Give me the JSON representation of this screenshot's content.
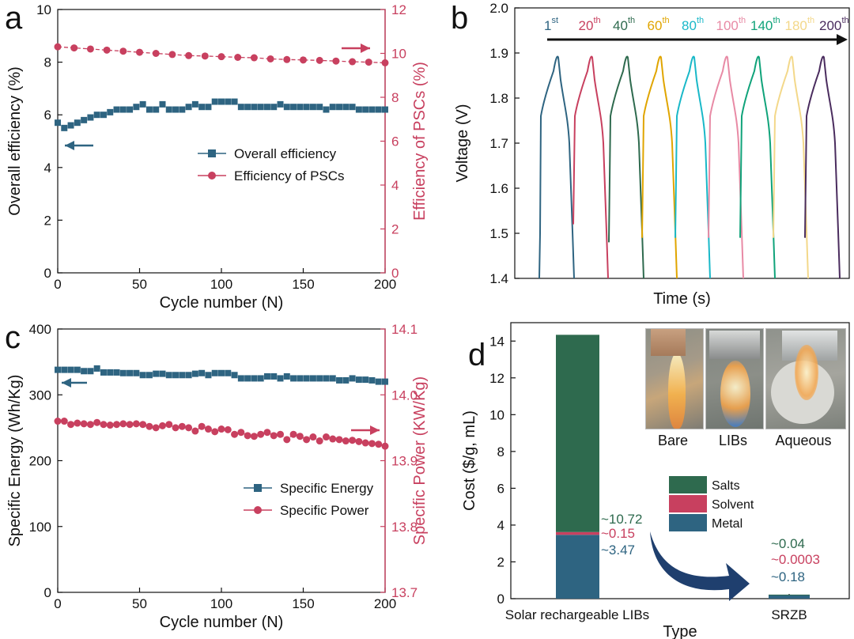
{
  "colors": {
    "blue": "#2e6481",
    "red": "#c8405f",
    "green": "#2e6a4e",
    "darkblue": "#1f3f6e",
    "photo_bg": "#9a9a90"
  },
  "chart_data": [
    {
      "panel": "a",
      "type": "line",
      "xlabel": "Cycle number (N)",
      "xlim": [
        0,
        200
      ],
      "xticks": [
        0,
        50,
        100,
        150,
        200
      ],
      "ylabel": "Overall efficiency (%)",
      "ylim": [
        0,
        10
      ],
      "yticks": [
        0,
        2,
        4,
        6,
        8,
        10
      ],
      "y2label": "Efficiency of PSCs (%)",
      "y2lim": [
        0,
        12
      ],
      "y2ticks": [
        0,
        2,
        4,
        6,
        8,
        10,
        12
      ],
      "legend": "center-right",
      "series": [
        {
          "name": "Overall efficiency",
          "axis": "left",
          "marker": "square",
          "color": "#2e6481",
          "x": [
            0,
            4,
            8,
            12,
            16,
            20,
            24,
            28,
            32,
            36,
            40,
            44,
            48,
            52,
            56,
            60,
            64,
            68,
            72,
            76,
            80,
            84,
            88,
            92,
            96,
            100,
            104,
            108,
            112,
            116,
            120,
            124,
            128,
            132,
            136,
            140,
            144,
            148,
            152,
            156,
            160,
            164,
            168,
            172,
            176,
            180,
            184,
            188,
            192,
            196,
            200
          ],
          "values": [
            5.7,
            5.5,
            5.6,
            5.7,
            5.8,
            5.9,
            6.0,
            6.0,
            6.1,
            6.2,
            6.2,
            6.2,
            6.3,
            6.4,
            6.2,
            6.2,
            6.4,
            6.2,
            6.2,
            6.2,
            6.3,
            6.4,
            6.3,
            6.3,
            6.5,
            6.5,
            6.5,
            6.5,
            6.3,
            6.3,
            6.3,
            6.3,
            6.3,
            6.3,
            6.4,
            6.3,
            6.3,
            6.3,
            6.3,
            6.3,
            6.3,
            6.2,
            6.3,
            6.3,
            6.3,
            6.3,
            6.2,
            6.2,
            6.2,
            6.2,
            6.2
          ]
        },
        {
          "name": "Efficiency of PSCs",
          "axis": "right",
          "marker": "circle",
          "color": "#c8405f",
          "x": [
            0,
            10,
            20,
            30,
            40,
            50,
            60,
            70,
            80,
            90,
            100,
            110,
            120,
            130,
            140,
            150,
            160,
            170,
            180,
            190,
            200
          ],
          "values": [
            10.3,
            10.25,
            10.2,
            10.15,
            10.1,
            10.05,
            10.0,
            9.95,
            9.9,
            9.88,
            9.85,
            9.82,
            9.8,
            9.75,
            9.72,
            9.7,
            9.68,
            9.65,
            9.62,
            9.6,
            9.57
          ]
        }
      ],
      "annotations": [
        "arrow-left (overall efficiency → left axis)",
        "arrow-right (PSCs → right axis)"
      ]
    },
    {
      "panel": "b",
      "type": "line",
      "xlabel": "Time (s)",
      "ylabel": "Voltage (V)",
      "ylim": [
        1.4,
        2.0
      ],
      "yticks": [
        1.4,
        1.5,
        1.6,
        1.7,
        1.8,
        1.9,
        2.0
      ],
      "cycle_labels": [
        {
          "num": "1",
          "sup": "st",
          "color": "#2e6481"
        },
        {
          "num": "20",
          "sup": "th",
          "color": "#c8405f"
        },
        {
          "num": "40",
          "sup": "th",
          "color": "#2e6a4e"
        },
        {
          "num": "60",
          "sup": "th",
          "color": "#e0a500"
        },
        {
          "num": "80",
          "sup": "th",
          "color": "#19b8c8"
        },
        {
          "num": "100",
          "sup": "th",
          "color": "#e88aa5"
        },
        {
          "num": "140",
          "sup": "th",
          "color": "#10a37a"
        },
        {
          "num": "180",
          "sup": "th",
          "color": "#f3d88a"
        },
        {
          "num": "200",
          "sup": "th",
          "color": "#4a2c5e"
        }
      ],
      "curve_peak_voltage": 1.89,
      "curve_min_voltage": 1.4
    },
    {
      "panel": "c",
      "type": "line",
      "xlabel": "Cycle number (N)",
      "xlim": [
        0,
        200
      ],
      "xticks": [
        0,
        50,
        100,
        150,
        200
      ],
      "ylabel": "Specific Energy (Wh/Kg)",
      "ylim": [
        0,
        400
      ],
      "yticks": [
        0,
        100,
        200,
        300,
        400
      ],
      "y2label": "Specific Power (KW/Kg)",
      "y2lim": [
        13.7,
        14.1
      ],
      "y2ticks": [
        "13.7",
        "13.8",
        "13.9",
        "14.0",
        "14.1"
      ],
      "legend": "center-right",
      "series": [
        {
          "name": "Specific Energy",
          "axis": "left",
          "marker": "square",
          "color": "#2e6481",
          "x": [
            0,
            4,
            8,
            12,
            16,
            20,
            24,
            28,
            32,
            36,
            40,
            44,
            48,
            52,
            56,
            60,
            64,
            68,
            72,
            76,
            80,
            84,
            88,
            92,
            96,
            100,
            104,
            108,
            112,
            116,
            120,
            124,
            128,
            132,
            136,
            140,
            144,
            148,
            152,
            156,
            160,
            164,
            168,
            172,
            176,
            180,
            184,
            188,
            192,
            196,
            200
          ],
          "values": [
            338,
            338,
            338,
            338,
            336,
            336,
            340,
            334,
            334,
            334,
            333,
            333,
            333,
            330,
            330,
            332,
            332,
            330,
            330,
            330,
            330,
            332,
            333,
            330,
            333,
            333,
            333,
            330,
            325,
            325,
            325,
            325,
            328,
            328,
            325,
            328,
            325,
            325,
            325,
            325,
            325,
            325,
            325,
            322,
            322,
            325,
            323,
            323,
            322,
            320,
            320
          ]
        },
        {
          "name": "Specific Power",
          "axis": "right",
          "marker": "circle",
          "color": "#c8405f",
          "x": [
            0,
            4,
            8,
            12,
            16,
            20,
            24,
            28,
            32,
            36,
            40,
            44,
            48,
            52,
            56,
            60,
            64,
            68,
            72,
            76,
            80,
            84,
            88,
            92,
            96,
            100,
            104,
            108,
            112,
            116,
            120,
            124,
            128,
            132,
            136,
            140,
            144,
            148,
            152,
            156,
            160,
            164,
            168,
            172,
            176,
            180,
            184,
            188,
            192,
            196,
            200
          ],
          "values": [
            13.96,
            13.96,
            13.955,
            13.957,
            13.956,
            13.955,
            13.958,
            13.955,
            13.954,
            13.955,
            13.956,
            13.955,
            13.956,
            13.955,
            13.952,
            13.95,
            13.953,
            13.955,
            13.95,
            13.952,
            13.95,
            13.945,
            13.952,
            13.948,
            13.944,
            13.948,
            13.947,
            13.94,
            13.943,
            13.938,
            13.937,
            13.94,
            13.943,
            13.938,
            13.94,
            13.932,
            13.94,
            13.937,
            13.932,
            13.936,
            13.93,
            13.936,
            13.933,
            13.932,
            13.93,
            13.931,
            13.929,
            13.927,
            13.926,
            13.925,
            13.922
          ]
        }
      ],
      "annotations": [
        "arrow-left (energy → left axis)",
        "arrow-right (power → right axis)"
      ]
    },
    {
      "panel": "d",
      "type": "bar",
      "stacked": true,
      "xlabel": "Type",
      "ylabel": "Cost ($/g, mL)",
      "ylim": [
        0,
        15
      ],
      "yticks": [
        0,
        2,
        4,
        6,
        8,
        10,
        12,
        14
      ],
      "categories": [
        "Solar rechargeable LIBs",
        "SRZB"
      ],
      "series": [
        {
          "name": "Metal",
          "color": "#2e6481",
          "values": [
            3.47,
            0.18
          ],
          "labels": [
            "~3.47",
            "~0.18"
          ]
        },
        {
          "name": "Solvent",
          "color": "#c8405f",
          "values": [
            0.15,
            0.0003
          ],
          "labels": [
            "~0.15",
            "~0.0003"
          ]
        },
        {
          "name": "Salts",
          "color": "#2e6a4e",
          "values": [
            10.72,
            0.04
          ],
          "labels": [
            "~10.72",
            "~0.04"
          ]
        }
      ],
      "legend": "center-right",
      "inset_photo_labels": [
        "Bare",
        "LIBs",
        "Aqueous"
      ]
    }
  ],
  "panel_labels": [
    "a",
    "b",
    "c",
    "d"
  ]
}
